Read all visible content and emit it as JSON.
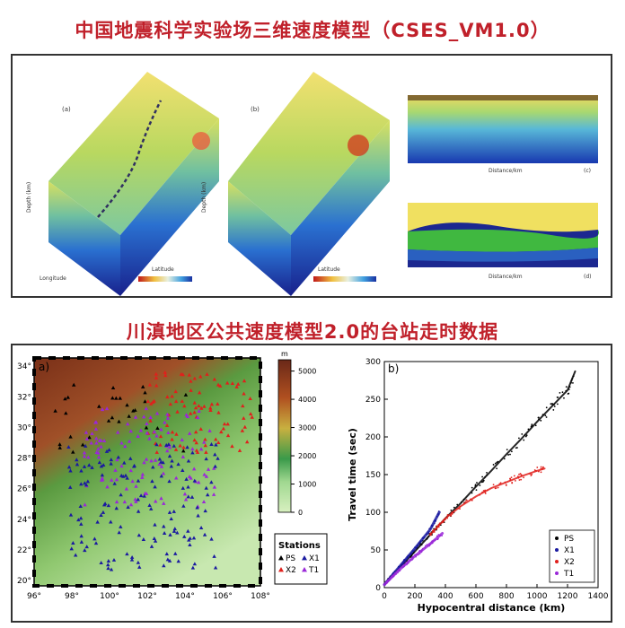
{
  "titles": {
    "top": "中国地震科学实验场三维速度模型（CSES_VM1.0）",
    "bottom": "川滇地区公共速度模型2.0的台站走时数据"
  },
  "top_panel": {
    "panel_labels": [
      "(a)",
      "(b)",
      "(c)",
      "(d)"
    ],
    "axis_words": {
      "depth": "Depth (km)",
      "latitude": "Latitude",
      "longitude": "Longitude",
      "distance": "Distance/km"
    }
  },
  "map_panel": {
    "label": "a)",
    "lon_ticks": [
      "96°",
      "98°",
      "100°",
      "102°",
      "104°",
      "106°",
      "108°"
    ],
    "lat_ticks": [
      "20°",
      "22°",
      "24°",
      "26°",
      "28°",
      "30°",
      "32°",
      "34°"
    ],
    "colorbar_unit": "m",
    "colorbar_ticks": [
      "0",
      "1000",
      "2000",
      "3000",
      "4000",
      "5000"
    ],
    "legend_title": "Stations",
    "legend_items": [
      "PS",
      "X1",
      "X2",
      "T1"
    ],
    "colors": {
      "PS": "#000000",
      "X1": "#1a1aa0",
      "X2": "#e0201c",
      "T1": "#9a28d8"
    }
  },
  "chart_data": {
    "type": "scatter",
    "label": "b)",
    "xlabel": "Hypocentral distance (km)",
    "ylabel": "Travel time (sec)",
    "xlim": [
      0,
      1400
    ],
    "ylim": [
      0,
      300
    ],
    "x_ticks": [
      0,
      200,
      400,
      600,
      800,
      1000,
      1200,
      1400
    ],
    "y_ticks": [
      0,
      50,
      100,
      150,
      200,
      250,
      300
    ],
    "legend_placement": "bottom-right",
    "series": [
      {
        "name": "PS",
        "color": "#000000",
        "x": [
          0,
          200,
          400,
          500,
          600,
          700,
          800,
          900,
          1000,
          1100,
          1200,
          1250
        ],
        "y": [
          5,
          48,
          92,
          112,
          134,
          155,
          177,
          198,
          220,
          241,
          262,
          287
        ]
      },
      {
        "name": "X1",
        "color": "#1a1aa0",
        "x": [
          0,
          100,
          200,
          300,
          360
        ],
        "y": [
          4,
          28,
          52,
          77,
          100
        ]
      },
      {
        "name": "X2",
        "color": "#e0201c",
        "x": [
          300,
          400,
          500,
          600,
          700,
          800,
          900,
          1000,
          1050
        ],
        "y": [
          70,
          92,
          108,
          121,
          132,
          140,
          148,
          155,
          158
        ]
      },
      {
        "name": "T1",
        "color": "#9a28d8",
        "x": [
          0,
          100,
          200,
          300,
          380
        ],
        "y": [
          4,
          24,
          42,
          58,
          72
        ]
      }
    ]
  }
}
